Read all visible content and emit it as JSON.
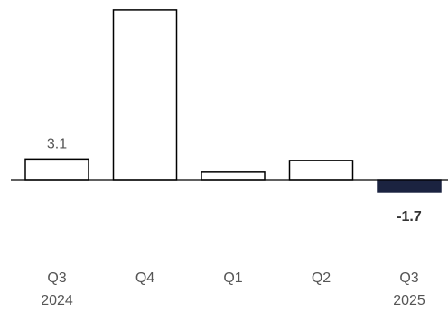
{
  "chart_data": {
    "type": "bar",
    "categories": [
      {
        "line1": "Q3",
        "line2": "2024"
      },
      {
        "line1": "Q4",
        "line2": ""
      },
      {
        "line1": "Q1",
        "line2": ""
      },
      {
        "line1": "Q2",
        "line2": ""
      },
      {
        "line1": "Q3",
        "line2": "2025"
      }
    ],
    "values": [
      3.1,
      24.8,
      1.2,
      2.9,
      -1.7
    ],
    "data_labels": [
      "3.1",
      "",
      "",
      "",
      "-1.7"
    ],
    "ylim": [
      -3,
      25
    ],
    "grid": false,
    "legend": "none",
    "colors": {
      "positive_fill": "#ffffff",
      "positive_stroke": "#000000",
      "negative_fill": "#1b2340",
      "negative_stroke": "#1b2340",
      "axis": "#000000",
      "positive_label": "#555555",
      "negative_label": "#333333"
    }
  }
}
